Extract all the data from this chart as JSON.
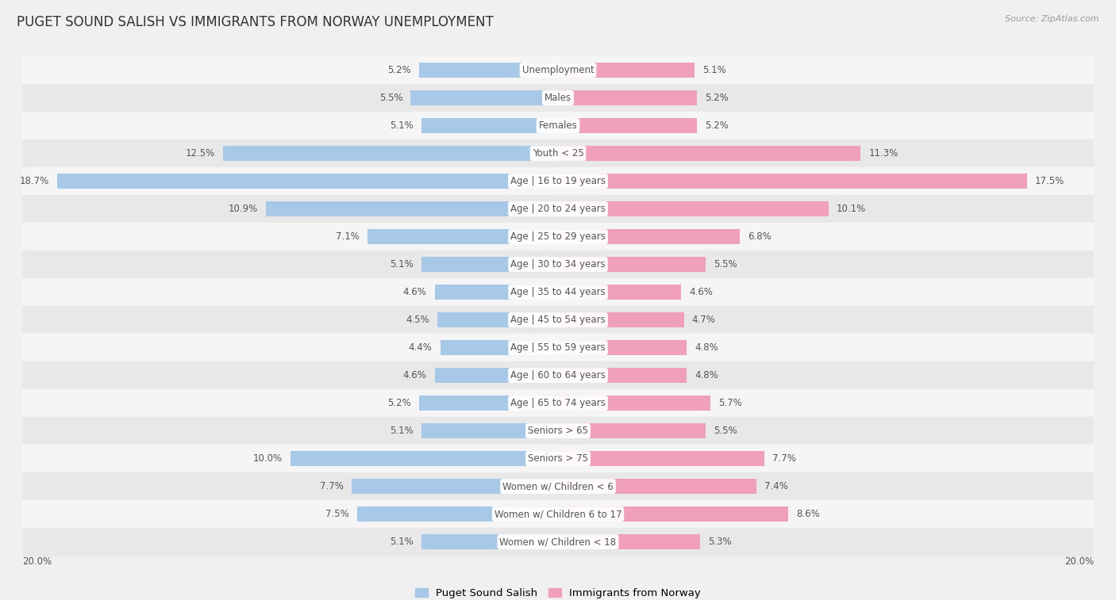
{
  "title": "PUGET SOUND SALISH VS IMMIGRANTS FROM NORWAY UNEMPLOYMENT",
  "source": "Source: ZipAtlas.com",
  "categories": [
    "Unemployment",
    "Males",
    "Females",
    "Youth < 25",
    "Age | 16 to 19 years",
    "Age | 20 to 24 years",
    "Age | 25 to 29 years",
    "Age | 30 to 34 years",
    "Age | 35 to 44 years",
    "Age | 45 to 54 years",
    "Age | 55 to 59 years",
    "Age | 60 to 64 years",
    "Age | 65 to 74 years",
    "Seniors > 65",
    "Seniors > 75",
    "Women w/ Children < 6",
    "Women w/ Children 6 to 17",
    "Women w/ Children < 18"
  ],
  "left_values": [
    5.2,
    5.5,
    5.1,
    12.5,
    18.7,
    10.9,
    7.1,
    5.1,
    4.6,
    4.5,
    4.4,
    4.6,
    5.2,
    5.1,
    10.0,
    7.7,
    7.5,
    5.1
  ],
  "right_values": [
    5.1,
    5.2,
    5.2,
    11.3,
    17.5,
    10.1,
    6.8,
    5.5,
    4.6,
    4.7,
    4.8,
    4.8,
    5.7,
    5.5,
    7.7,
    7.4,
    8.6,
    5.3
  ],
  "left_color": "#a8c8e8",
  "right_color": "#f0a0b8",
  "bg_color": "#f0f0f0",
  "row_bg_even": "#f5f5f5",
  "row_bg_odd": "#e8e8e8",
  "max_value": 20.0,
  "left_label": "Puget Sound Salish",
  "right_label": "Immigrants from Norway",
  "title_fontsize": 12,
  "legend_fontsize": 9.5,
  "value_fontsize": 8.5,
  "category_fontsize": 8.5,
  "source_fontsize": 8
}
